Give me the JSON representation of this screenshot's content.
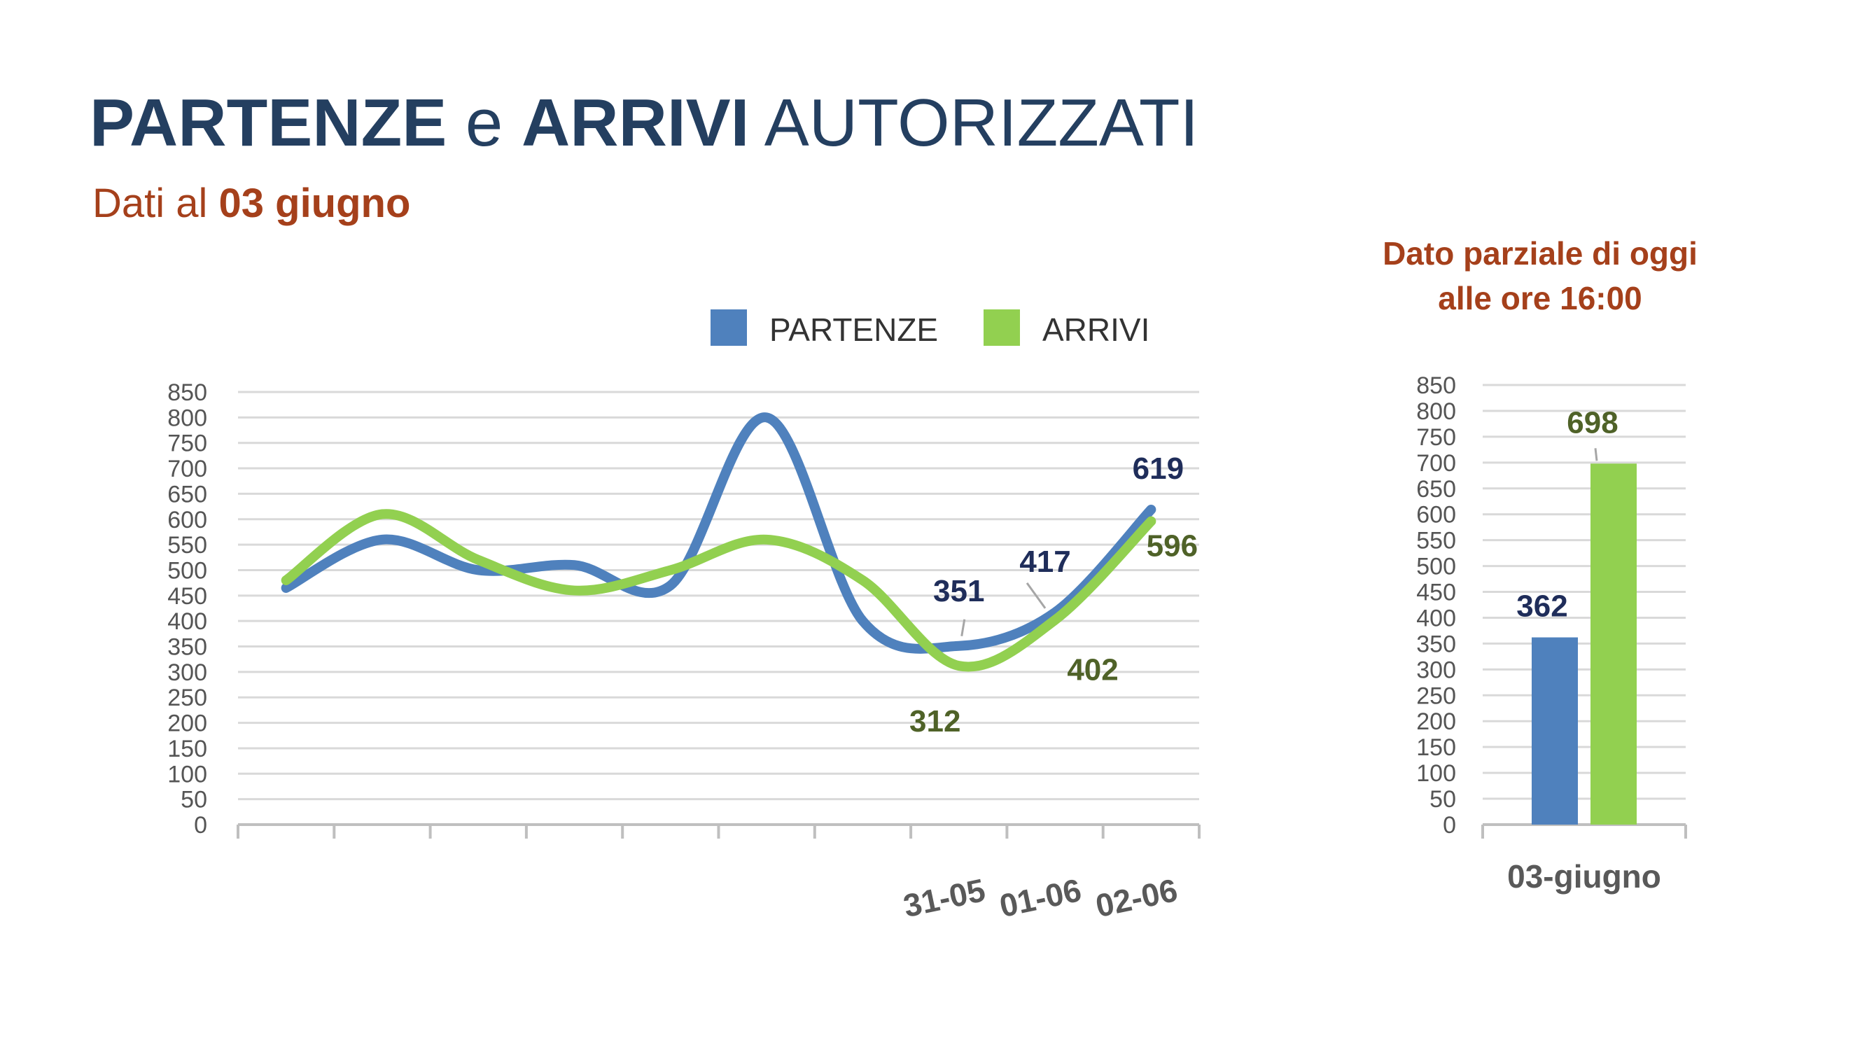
{
  "header": {
    "title_part1": "PARTENZE",
    "title_part2": " e ",
    "title_part3": "ARRIVI",
    "title_part4": " AUTORIZZATI",
    "subtitle_part1": "Dati al ",
    "subtitle_part2": "03 giugno",
    "note_line1": "Dato parziale di oggi",
    "note_line2": "alle ore 16:00"
  },
  "colors": {
    "partenze": "#4f81bd",
    "arrivi": "#92d050",
    "partenze_label": "#1f2d5a",
    "arrivi_label": "#4f6228",
    "title": "#243f60",
    "accent": "#a5401b"
  },
  "chart_data": [
    {
      "type": "line",
      "smooth": true,
      "categories": [
        "",
        "",
        "",
        "",
        "",
        "",
        "",
        "31-05",
        "01-06",
        "02-06"
      ],
      "series": [
        {
          "name": "PARTENZE",
          "values": [
            465,
            560,
            500,
            510,
            470,
            800,
            400,
            351,
            417,
            619
          ]
        },
        {
          "name": "ARRIVI",
          "values": [
            480,
            610,
            520,
            460,
            500,
            560,
            480,
            312,
            402,
            596
          ]
        }
      ],
      "data_labels": [
        {
          "series": "PARTENZE",
          "index": 7,
          "text": "351"
        },
        {
          "series": "PARTENZE",
          "index": 8,
          "text": "417"
        },
        {
          "series": "PARTENZE",
          "index": 9,
          "text": "619"
        },
        {
          "series": "ARRIVI",
          "index": 7,
          "text": "312"
        },
        {
          "series": "ARRIVI",
          "index": 8,
          "text": "402"
        },
        {
          "series": "ARRIVI",
          "index": 9,
          "text": "596"
        }
      ],
      "yticks": [
        "0",
        "50",
        "100",
        "150",
        "200",
        "250",
        "300",
        "350",
        "400",
        "450",
        "500",
        "550",
        "600",
        "650",
        "700",
        "750",
        "800",
        "850"
      ],
      "ylim": [
        0,
        850
      ],
      "grid": true,
      "legend": "top"
    },
    {
      "type": "bar",
      "categories": [
        "03-giugno"
      ],
      "series": [
        {
          "name": "PARTENZE",
          "values": [
            362
          ]
        },
        {
          "name": "ARRIVI",
          "values": [
            698
          ]
        }
      ],
      "data_labels": [
        "362",
        "698"
      ],
      "yticks": [
        "0",
        "50",
        "100",
        "150",
        "200",
        "250",
        "300",
        "350",
        "400",
        "450",
        "500",
        "550",
        "600",
        "650",
        "700",
        "750",
        "800",
        "850"
      ],
      "ylim": [
        0,
        850
      ],
      "grid": true
    }
  ]
}
